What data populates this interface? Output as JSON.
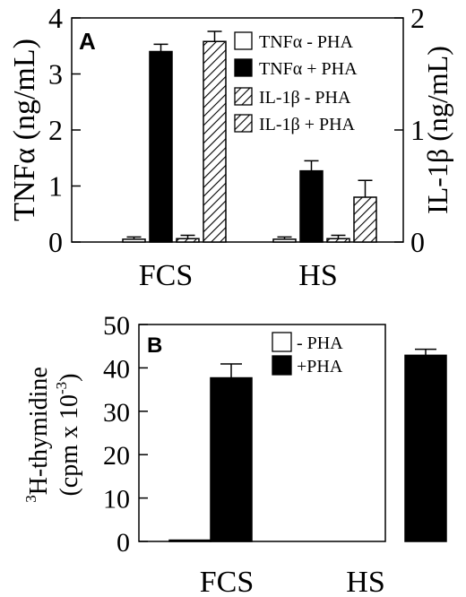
{
  "chart_data": [
    {
      "type": "bar",
      "panel_label": "A",
      "categories": [
        "FCS",
        "HS"
      ],
      "ylabel_left": "TNFα (ng/mL)",
      "ylabel_right": "IL-1β (ng/mL)",
      "ylim_left": [
        0,
        4
      ],
      "ylim_right": [
        0,
        2
      ],
      "yticks_left": [
        "0",
        "1",
        "2",
        "3",
        "4"
      ],
      "yticks_right": [
        "0",
        "1",
        "2"
      ],
      "legend_position": "top-right",
      "series": [
        {
          "name": "TNFα - PHA",
          "axis": "left",
          "fill": "white",
          "values": [
            0.05,
            0.05
          ],
          "errors": [
            0.04,
            0.04
          ]
        },
        {
          "name": "TNFα + PHA",
          "axis": "left",
          "fill": "black",
          "values": [
            3.4,
            1.27
          ],
          "errors": [
            0.13,
            0.18
          ]
        },
        {
          "name": "IL-1β - PHA",
          "axis": "right",
          "fill": "hatch",
          "values": [
            0.03,
            0.03
          ],
          "errors": [
            0.03,
            0.03
          ]
        },
        {
          "name": "IL-1β + PHA",
          "axis": "right",
          "fill": "hatch",
          "values": [
            1.79,
            0.4
          ],
          "errors": [
            0.09,
            0.15
          ]
        }
      ]
    },
    {
      "type": "bar",
      "panel_label": "B",
      "categories": [
        "FCS",
        "HS"
      ],
      "ylabel_line1": "H-thymidine",
      "ylabel_superscript": "3",
      "ylabel_line2": "(cpm x 10",
      "ylabel_line2_exp": "-3",
      "ylabel_line2_end": ")",
      "ylim": [
        0,
        50
      ],
      "yticks": [
        "0",
        "10",
        "20",
        "30",
        "40",
        "50"
      ],
      "legend_position": "top-right",
      "series": [
        {
          "name": "- PHA",
          "fill": "white",
          "values": [
            0.3,
            0
          ],
          "errors": [
            0,
            0
          ]
        },
        {
          "name": "+PHA",
          "fill": "black",
          "values": [
            37.7,
            42.9
          ],
          "errors": [
            3.2,
            1.4
          ]
        }
      ]
    }
  ]
}
